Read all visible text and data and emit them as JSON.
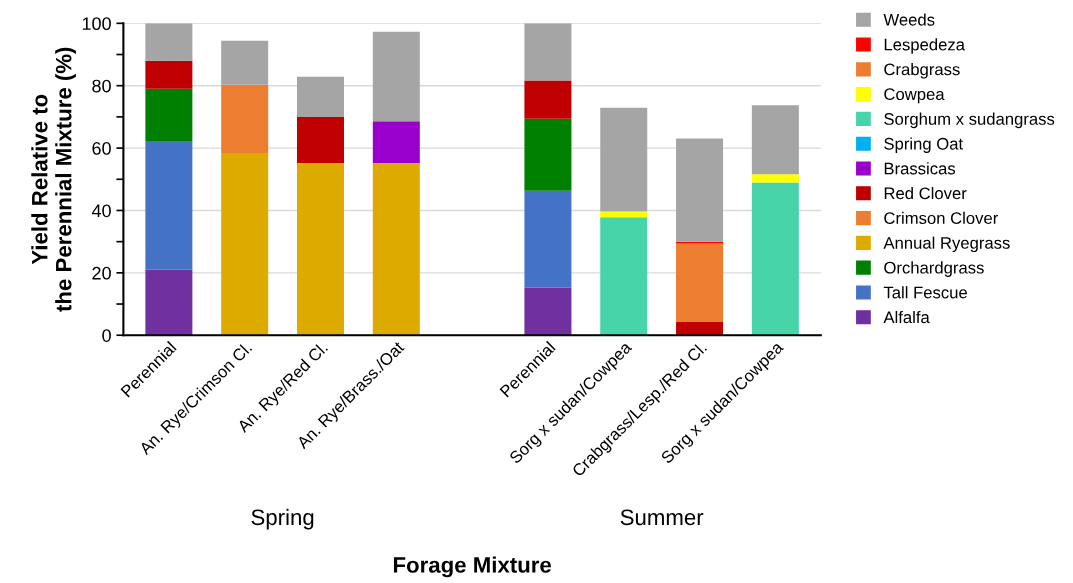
{
  "chart_data": {
    "type": "bar",
    "stacked": true,
    "xlabel": "Forage Mixture",
    "ylabel": "Yield Relative to\nthe Perennial Mixture (%)",
    "categories": [
      "Perennial",
      "An. Rye/Crimson Cl.",
      "An. Rye/Red Cl.",
      "An. Rye/Brass./Oat",
      null,
      "Perennial",
      "Sorg x sudan/Cowpea",
      "Crabgrass/Lesp./Red Cl.",
      "Sorg x sudan/Cowpea"
    ],
    "annotations": [
      "Spring",
      "Summer"
    ],
    "ylim": [
      0,
      100
    ],
    "yticks": [
      0,
      {
        "value": 10,
        "label": null
      },
      20,
      {
        "value": 30,
        "label": null
      },
      40,
      {
        "value": 50,
        "label": null
      },
      60,
      {
        "value": 70,
        "label": null
      },
      80,
      {
        "value": 90,
        "label": null
      },
      100
    ],
    "grid": "y",
    "legend": "right",
    "series": [
      {
        "name": "Alfalfa",
        "color": "#7030a0",
        "values": [
          21.0,
          null,
          null,
          null,
          null,
          15.2,
          null,
          null,
          null
        ]
      },
      {
        "name": "Tall Fescue",
        "color": "#4472c4",
        "values": [
          41.3,
          null,
          null,
          null,
          null,
          31.1,
          null,
          null,
          null
        ]
      },
      {
        "name": "Orchardgrass",
        "color": "#008000",
        "values": [
          16.7,
          null,
          null,
          null,
          null,
          23.1,
          null,
          null,
          null
        ]
      },
      {
        "name": "Annual Ryegrass",
        "color": "#ddaa00",
        "values": [
          null,
          58.4,
          55.2,
          55.2,
          null,
          null,
          null,
          null,
          null
        ]
      },
      {
        "name": "Crimson Clover",
        "color": "#ed7d31",
        "values": [
          null,
          21.9,
          null,
          null,
          null,
          null,
          null,
          null,
          null
        ]
      },
      {
        "name": "Red Clover",
        "color": "#c00000",
        "values": [
          9.0,
          null,
          14.8,
          null,
          null,
          12.3,
          null,
          4.2,
          null
        ]
      },
      {
        "name": "Brassicas",
        "color": "#9900cc",
        "values": [
          null,
          null,
          null,
          13.2,
          null,
          null,
          null,
          null,
          null
        ]
      },
      {
        "name": "Spring Oat",
        "color": "#00b0f0",
        "values": [
          null,
          null,
          null,
          0.3,
          null,
          null,
          null,
          null,
          null
        ]
      },
      {
        "name": "Sorghum x sudangrass",
        "color": "#47d4a8",
        "values": [
          null,
          null,
          null,
          null,
          null,
          null,
          37.8,
          null,
          49.0
        ]
      },
      {
        "name": "Cowpea",
        "color": "#ffff00",
        "values": [
          null,
          null,
          null,
          null,
          null,
          null,
          1.9,
          null,
          2.6
        ]
      },
      {
        "name": "Crabgrass",
        "color": "#ed7d31",
        "values": [
          null,
          null,
          null,
          null,
          null,
          null,
          null,
          25.2,
          null
        ]
      },
      {
        "name": "Lespedeza",
        "color": "#ff0000",
        "values": [
          null,
          null,
          null,
          null,
          null,
          null,
          null,
          0.6,
          null
        ]
      },
      {
        "name": "Weeds",
        "color": "#a5a5a5",
        "values": [
          12.0,
          14.1,
          12.9,
          28.6,
          null,
          18.3,
          33.2,
          33.1,
          22.1
        ]
      }
    ]
  }
}
